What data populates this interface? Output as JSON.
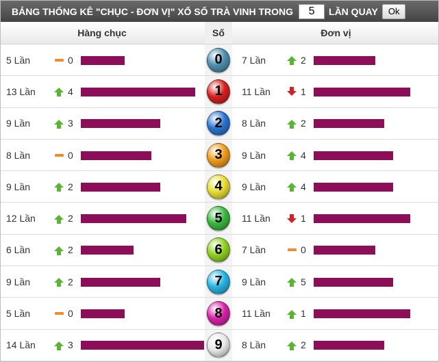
{
  "topbar": {
    "title": "BẢNG THỐNG KÊ \"CHỤC - ĐƠN VỊ\" XỔ SỐ TRÀ VINH TRONG",
    "count_value": "5",
    "suffix": "LẦN QUAY",
    "ok_label": "Ok"
  },
  "header": {
    "left": "Hàng chục",
    "mid": "Số",
    "right": "Đơn vị"
  },
  "max_count": 14,
  "colors": {
    "bar": "#8c0e58",
    "up": "#5ab532",
    "down": "#d4202b",
    "same": "#f28b2c"
  },
  "rows": [
    {
      "number": "0",
      "tens_count_label": "5 Lần",
      "tens_count": 5,
      "tens_trend": "same",
      "tens_change": "0",
      "units_count_label": "7 Lần",
      "units_count": 7,
      "units_trend": "up",
      "units_change": "2",
      "ball_color": "#4d8fae"
    },
    {
      "number": "1",
      "tens_count_label": "13 Lần",
      "tens_count": 13,
      "tens_trend": "up",
      "tens_change": "4",
      "units_count_label": "11 Lần",
      "units_count": 11,
      "units_trend": "down",
      "units_change": "1",
      "ball_color": "#d6201f"
    },
    {
      "number": "2",
      "tens_count_label": "9 Lần",
      "tens_count": 9,
      "tens_trend": "up",
      "tens_change": "3",
      "units_count_label": "8 Lần",
      "units_count": 8,
      "units_trend": "up",
      "units_change": "2",
      "ball_color": "#2b74d0"
    },
    {
      "number": "3",
      "tens_count_label": "8 Lần",
      "tens_count": 8,
      "tens_trend": "same",
      "tens_change": "0",
      "units_count_label": "9 Lần",
      "units_count": 9,
      "units_trend": "up",
      "units_change": "4",
      "ball_color": "#ef9b1c"
    },
    {
      "number": "4",
      "tens_count_label": "9 Lần",
      "tens_count": 9,
      "tens_trend": "up",
      "tens_change": "2",
      "units_count_label": "9 Lần",
      "units_count": 9,
      "units_trend": "up",
      "units_change": "4",
      "ball_color": "#e7dd32"
    },
    {
      "number": "5",
      "tens_count_label": "12 Lần",
      "tens_count": 12,
      "tens_trend": "up",
      "tens_change": "2",
      "units_count_label": "11 Lần",
      "units_count": 11,
      "units_trend": "down",
      "units_change": "1",
      "ball_color": "#38b83d"
    },
    {
      "number": "6",
      "tens_count_label": "6 Lần",
      "tens_count": 6,
      "tens_trend": "up",
      "tens_change": "2",
      "units_count_label": "7 Lần",
      "units_count": 7,
      "units_trend": "same",
      "units_change": "0",
      "ball_color": "#8fd11f"
    },
    {
      "number": "7",
      "tens_count_label": "9 Lần",
      "tens_count": 9,
      "tens_trend": "up",
      "tens_change": "2",
      "units_count_label": "9 Lần",
      "units_count": 9,
      "units_trend": "up",
      "units_change": "5",
      "ball_color": "#26b3e2"
    },
    {
      "number": "8",
      "tens_count_label": "5 Lần",
      "tens_count": 5,
      "tens_trend": "same",
      "tens_change": "0",
      "units_count_label": "11 Lần",
      "units_count": 11,
      "units_trend": "up",
      "units_change": "1",
      "ball_color": "#d822a8"
    },
    {
      "number": "9",
      "tens_count_label": "14 Lần",
      "tens_count": 14,
      "tens_trend": "up",
      "tens_change": "3",
      "units_count_label": "8 Lần",
      "units_count": 8,
      "units_trend": "up",
      "units_change": "2",
      "ball_color": "#e9e9e9"
    }
  ]
}
